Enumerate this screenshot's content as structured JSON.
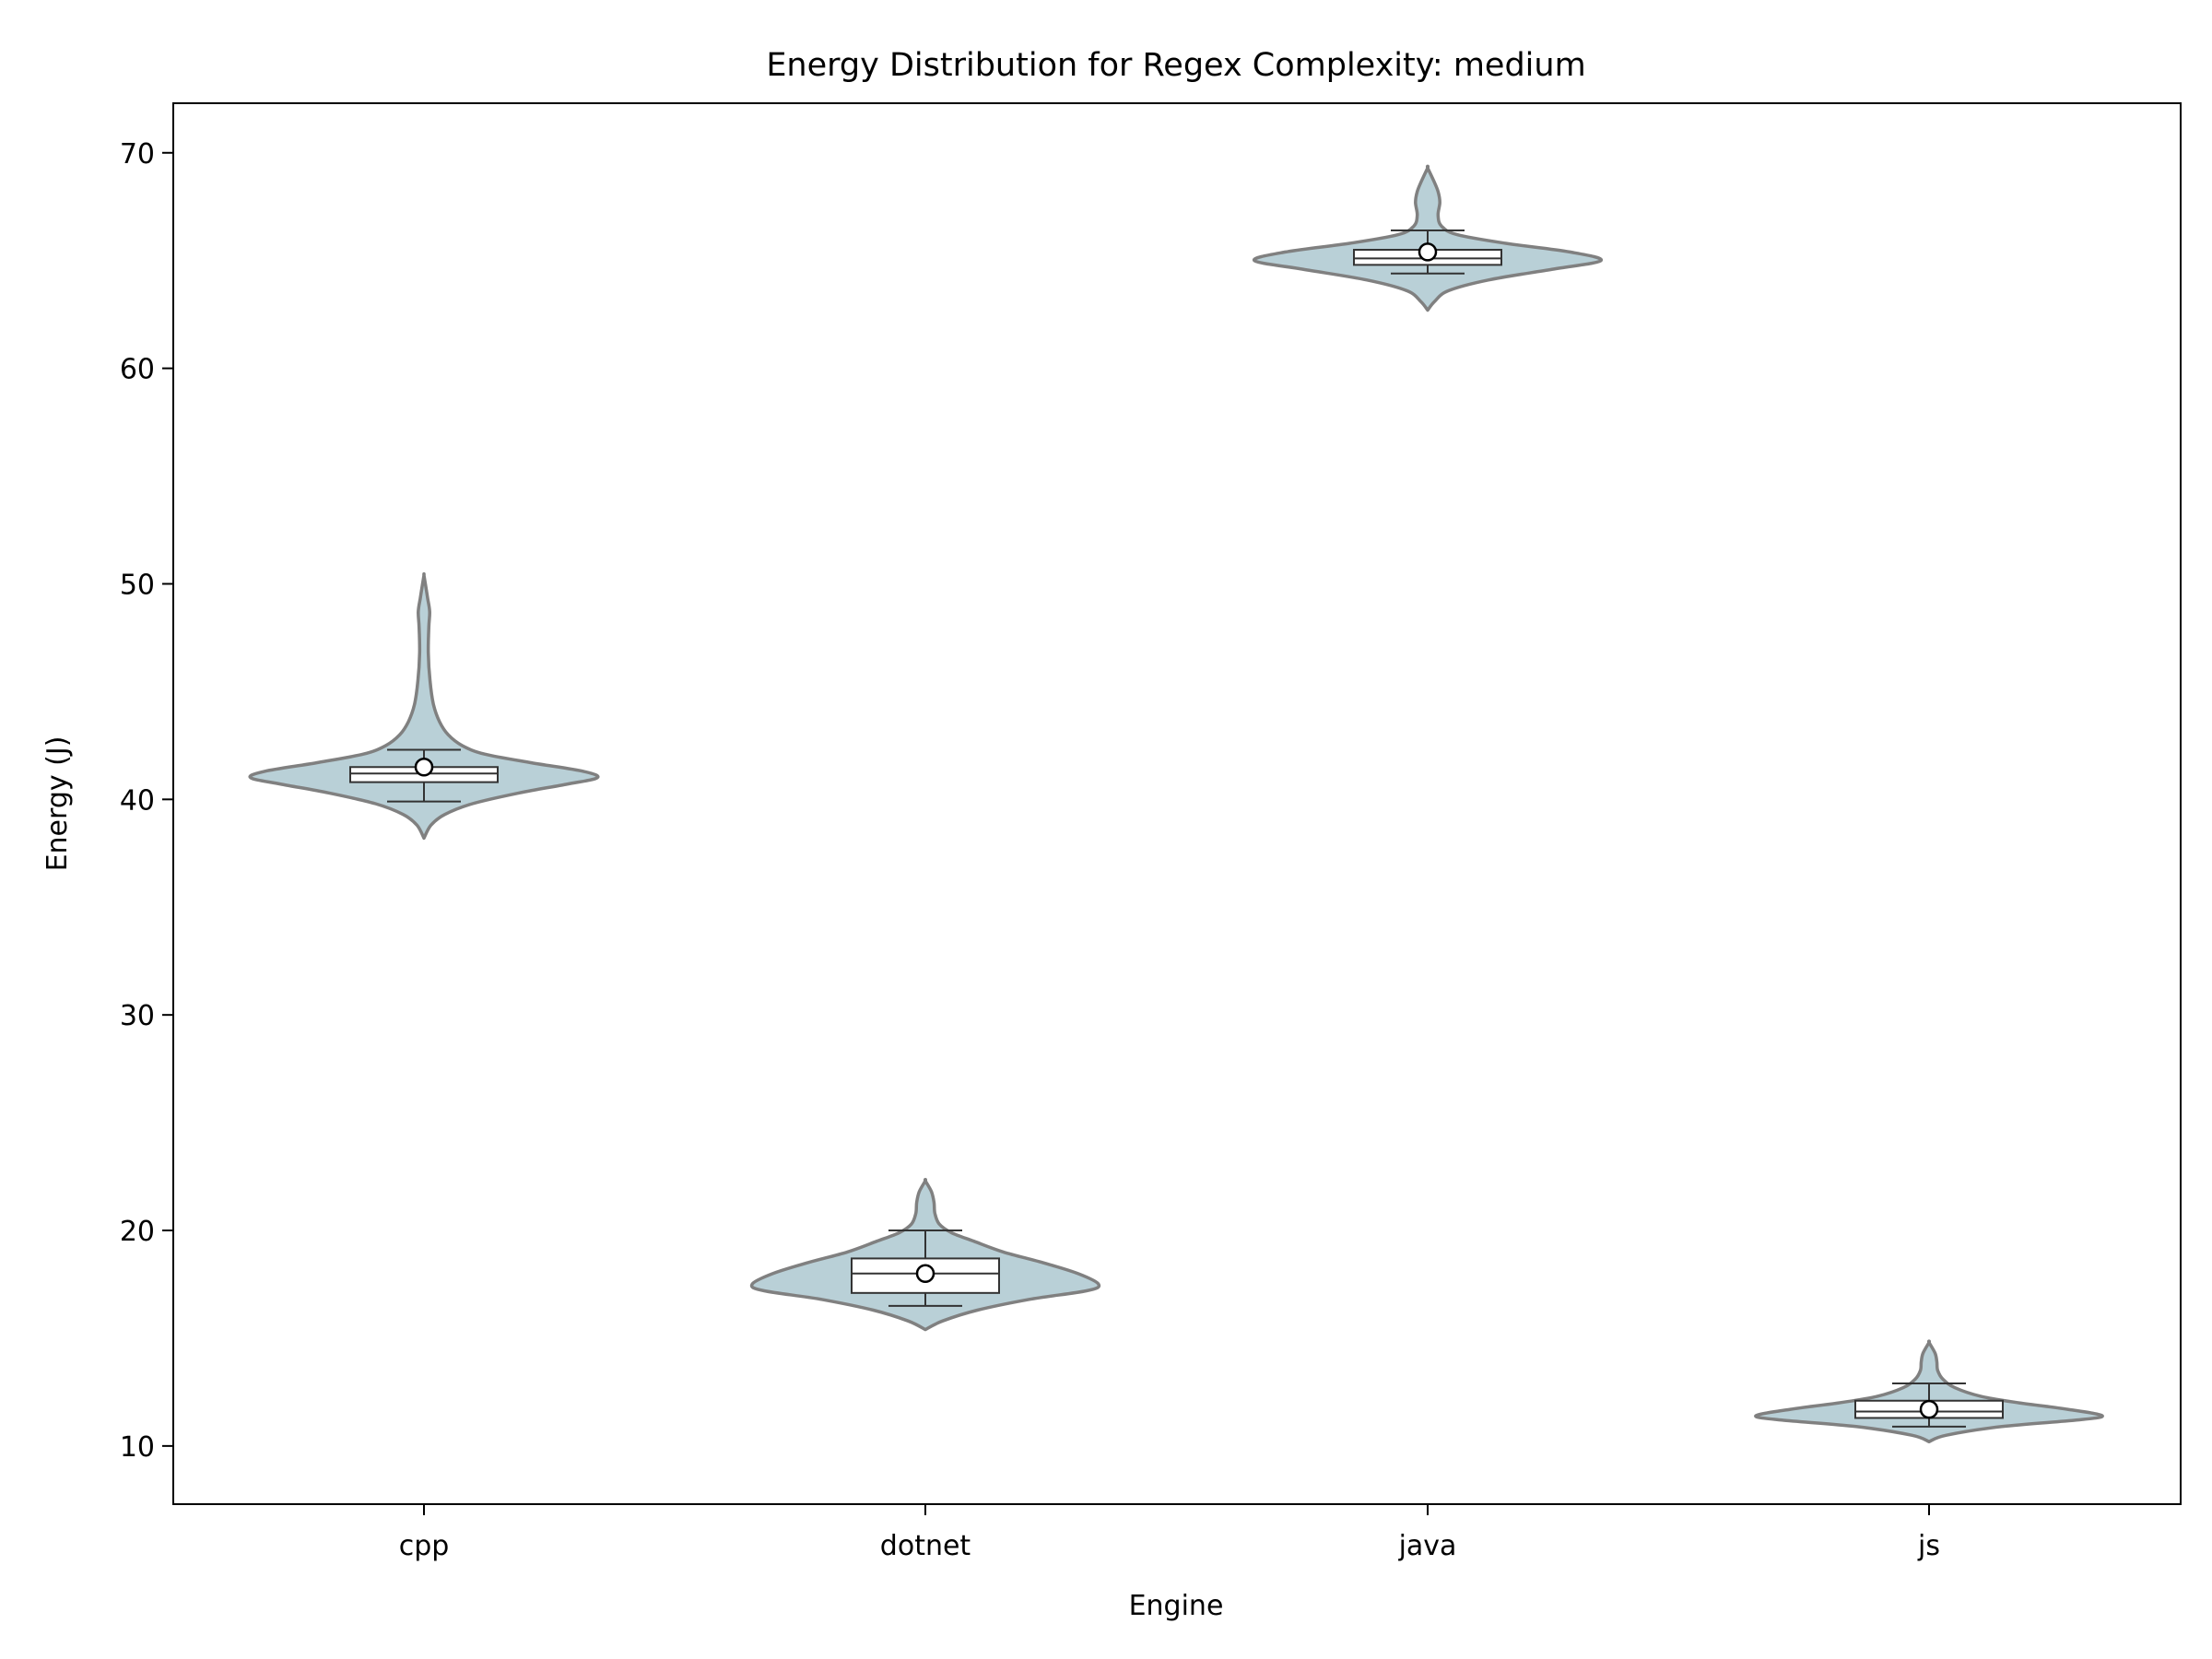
{
  "chart_data": {
    "type": "violin",
    "title": "Energy Distribution for Regex Complexity: medium",
    "xlabel": "Engine",
    "ylabel": "Energy (J)",
    "ylim": [
      7.3,
      72.3
    ],
    "yticks": [
      10,
      20,
      30,
      40,
      50,
      60,
      70
    ],
    "grid": false,
    "legend": "none",
    "categories": [
      "cpp",
      "dotnet",
      "java",
      "js"
    ],
    "colors": {
      "violin_fill": "#b9d0d7",
      "violin_edge": "#808080",
      "box_fill": "#ffffff",
      "box_edge": "#333333"
    },
    "series": [
      {
        "category": "cpp",
        "min": 38.2,
        "max": 50.4,
        "box": {
          "q1": 40.8,
          "median": 41.2,
          "q3": 41.5,
          "whisker_low": 39.9,
          "whisker_high": 42.3,
          "mean": 41.5
        },
        "density": [
          [
            38.2,
            0
          ],
          [
            38.8,
            0.04
          ],
          [
            39.3,
            0.12
          ],
          [
            39.8,
            0.28
          ],
          [
            40.3,
            0.55
          ],
          [
            40.7,
            0.82
          ],
          [
            41.0,
            1.0
          ],
          [
            41.3,
            0.92
          ],
          [
            41.7,
            0.62
          ],
          [
            42.1,
            0.35
          ],
          [
            42.5,
            0.22
          ],
          [
            43.0,
            0.14
          ],
          [
            43.6,
            0.09
          ],
          [
            44.4,
            0.055
          ],
          [
            45.5,
            0.035
          ],
          [
            46.8,
            0.025
          ],
          [
            48.0,
            0.028
          ],
          [
            48.7,
            0.033
          ],
          [
            49.3,
            0.022
          ],
          [
            49.9,
            0.01
          ],
          [
            50.4,
            0
          ]
        ]
      },
      {
        "category": "dotnet",
        "min": 15.4,
        "max": 22.3,
        "box": {
          "q1": 17.1,
          "median": 18.0,
          "q3": 18.7,
          "whisker_low": 16.5,
          "whisker_high": 20.0,
          "mean": 18.0
        },
        "density": [
          [
            15.4,
            0
          ],
          [
            15.8,
            0.1
          ],
          [
            16.3,
            0.3
          ],
          [
            16.8,
            0.6
          ],
          [
            17.2,
            0.93
          ],
          [
            17.5,
            1.0
          ],
          [
            18.0,
            0.88
          ],
          [
            18.5,
            0.68
          ],
          [
            19.0,
            0.45
          ],
          [
            19.5,
            0.28
          ],
          [
            19.9,
            0.15
          ],
          [
            20.3,
            0.08
          ],
          [
            20.8,
            0.055
          ],
          [
            21.3,
            0.05
          ],
          [
            21.8,
            0.035
          ],
          [
            22.3,
            0
          ]
        ]
      },
      {
        "category": "java",
        "min": 62.7,
        "max": 69.3,
        "box": {
          "q1": 64.8,
          "median": 65.1,
          "q3": 65.5,
          "whisker_low": 64.4,
          "whisker_high": 66.4,
          "mean": 65.4
        },
        "density": [
          [
            62.7,
            0
          ],
          [
            63.1,
            0.04
          ],
          [
            63.6,
            0.12
          ],
          [
            64.1,
            0.35
          ],
          [
            64.6,
            0.72
          ],
          [
            65.0,
            1.0
          ],
          [
            65.4,
            0.82
          ],
          [
            65.8,
            0.45
          ],
          [
            66.2,
            0.17
          ],
          [
            66.6,
            0.08
          ],
          [
            67.1,
            0.06
          ],
          [
            67.7,
            0.07
          ],
          [
            68.2,
            0.06
          ],
          [
            68.7,
            0.035
          ],
          [
            69.3,
            0
          ]
        ]
      },
      {
        "category": "js",
        "min": 10.2,
        "max": 14.8,
        "box": {
          "q1": 11.3,
          "median": 11.6,
          "q3": 12.1,
          "whisker_low": 10.9,
          "whisker_high": 12.9,
          "mean": 11.7
        },
        "density": [
          [
            10.2,
            0
          ],
          [
            10.5,
            0.1
          ],
          [
            10.9,
            0.42
          ],
          [
            11.2,
            0.85
          ],
          [
            11.4,
            1.0
          ],
          [
            11.7,
            0.8
          ],
          [
            12.0,
            0.52
          ],
          [
            12.3,
            0.3
          ],
          [
            12.7,
            0.15
          ],
          [
            13.1,
            0.08
          ],
          [
            13.5,
            0.05
          ],
          [
            13.9,
            0.045
          ],
          [
            14.3,
            0.035
          ],
          [
            14.8,
            0
          ]
        ]
      }
    ]
  }
}
